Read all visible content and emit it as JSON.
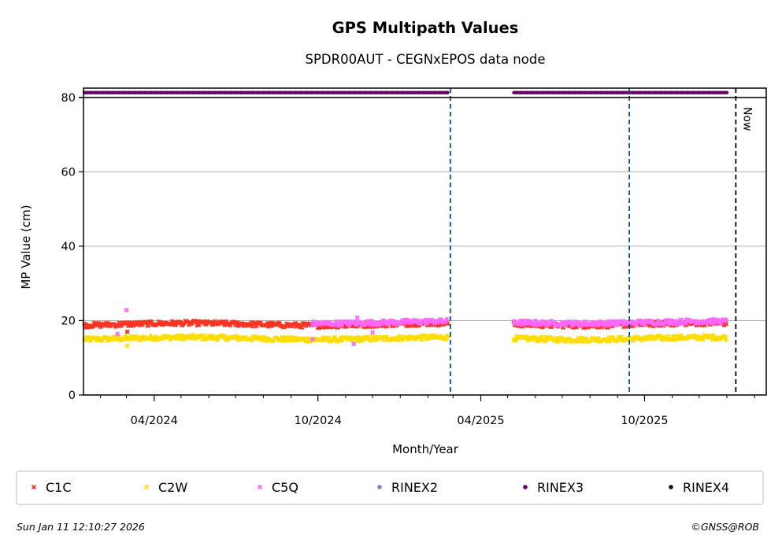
{
  "chart_data": {
    "type": "scatter",
    "title": "GPS Multipath Values",
    "subtitle": "SPDR00AUT - CEGNxEPOS data node",
    "xlabel": "Month/Year",
    "ylabel": "MP Value (cm)",
    "xlim": [
      "2024-01-13",
      "2026-02-14"
    ],
    "ylim": [
      0,
      82.5
    ],
    "y_ticks": [
      0,
      20,
      40,
      60,
      80
    ],
    "x_ticks": [
      {
        "date": "2024-04-01",
        "label": "04/2024"
      },
      {
        "date": "2024-10-01",
        "label": "10/2024"
      },
      {
        "date": "2025-04-01",
        "label": "04/2025"
      },
      {
        "date": "2025-10-01",
        "label": "10/2025"
      }
    ],
    "x_minor_ticks": [
      "2024-02-01",
      "2024-03-01",
      "2024-05-01",
      "2024-06-01",
      "2024-07-01",
      "2024-08-01",
      "2024-09-01",
      "2024-11-01",
      "2024-12-01",
      "2025-01-01",
      "2025-02-01",
      "2025-03-01",
      "2025-05-01",
      "2025-06-01",
      "2025-07-01",
      "2025-08-01",
      "2025-09-01",
      "2025-11-01",
      "2025-12-01",
      "2026-01-01",
      "2026-02-01"
    ],
    "grid": "y",
    "rinex_band_y": 81.3,
    "series": [
      {
        "name": "C1C",
        "color": "#ff3322",
        "marker": "x",
        "mean": 19.0,
        "segments": [
          [
            "2024-01-14",
            "2025-02-24"
          ],
          [
            "2025-05-08",
            "2026-01-02"
          ]
        ]
      },
      {
        "name": "C2W",
        "color": "#ffdd00",
        "marker": "x",
        "mean": 15.2,
        "segments": [
          [
            "2024-01-14",
            "2025-02-24"
          ],
          [
            "2025-05-08",
            "2026-01-02"
          ]
        ]
      },
      {
        "name": "C5Q",
        "color": "#ff66ff",
        "marker": "x",
        "mean": 19.5,
        "segments": [
          [
            "2024-09-25",
            "2025-02-24"
          ],
          [
            "2025-05-08",
            "2026-01-02"
          ]
        ]
      },
      {
        "name": "RINEX2",
        "color": "#8080c0",
        "marker": "o",
        "segments": []
      },
      {
        "name": "RINEX3",
        "color": "#6a006a",
        "marker": "o",
        "segments": [
          [
            "2024-01-14",
            "2025-02-24"
          ],
          [
            "2025-05-08",
            "2026-01-02"
          ]
        ]
      },
      {
        "name": "RINEX4",
        "color": "#1a0a1a",
        "marker": "o",
        "segments": []
      }
    ],
    "outliers": [
      {
        "series": "C5Q",
        "date": "2024-03-01",
        "value": 22.8
      },
      {
        "series": "C5Q",
        "date": "2024-02-20",
        "value": 16.4
      },
      {
        "series": "C2W",
        "date": "2024-03-02",
        "value": 13.2
      },
      {
        "series": "C1C",
        "date": "2024-03-02",
        "value": 17.0
      },
      {
        "series": "C5Q",
        "date": "2024-11-10",
        "value": 13.7
      },
      {
        "series": "C5Q",
        "date": "2024-11-14",
        "value": 20.8
      },
      {
        "series": "C5Q",
        "date": "2024-12-01",
        "value": 16.8
      },
      {
        "series": "C5Q",
        "date": "2024-09-25",
        "value": 15.0
      }
    ],
    "vertical_lines": [
      {
        "date": "2025-02-26",
        "color": "#0055aa",
        "style": "dashed"
      },
      {
        "date": "2025-09-14",
        "color": "#0055aa",
        "style": "dashed"
      },
      {
        "date": "2026-01-11",
        "color": "#000000",
        "style": "dashed",
        "label": "Now"
      }
    ],
    "legend": {
      "placement": "bottom",
      "entries": [
        "C1C",
        "C2W",
        "C5Q",
        "RINEX2",
        "RINEX3",
        "RINEX4"
      ]
    }
  },
  "footer": {
    "timestamp": "Sun Jan 11 12:10:27 2026",
    "copyright": "©GNSS@ROB"
  }
}
